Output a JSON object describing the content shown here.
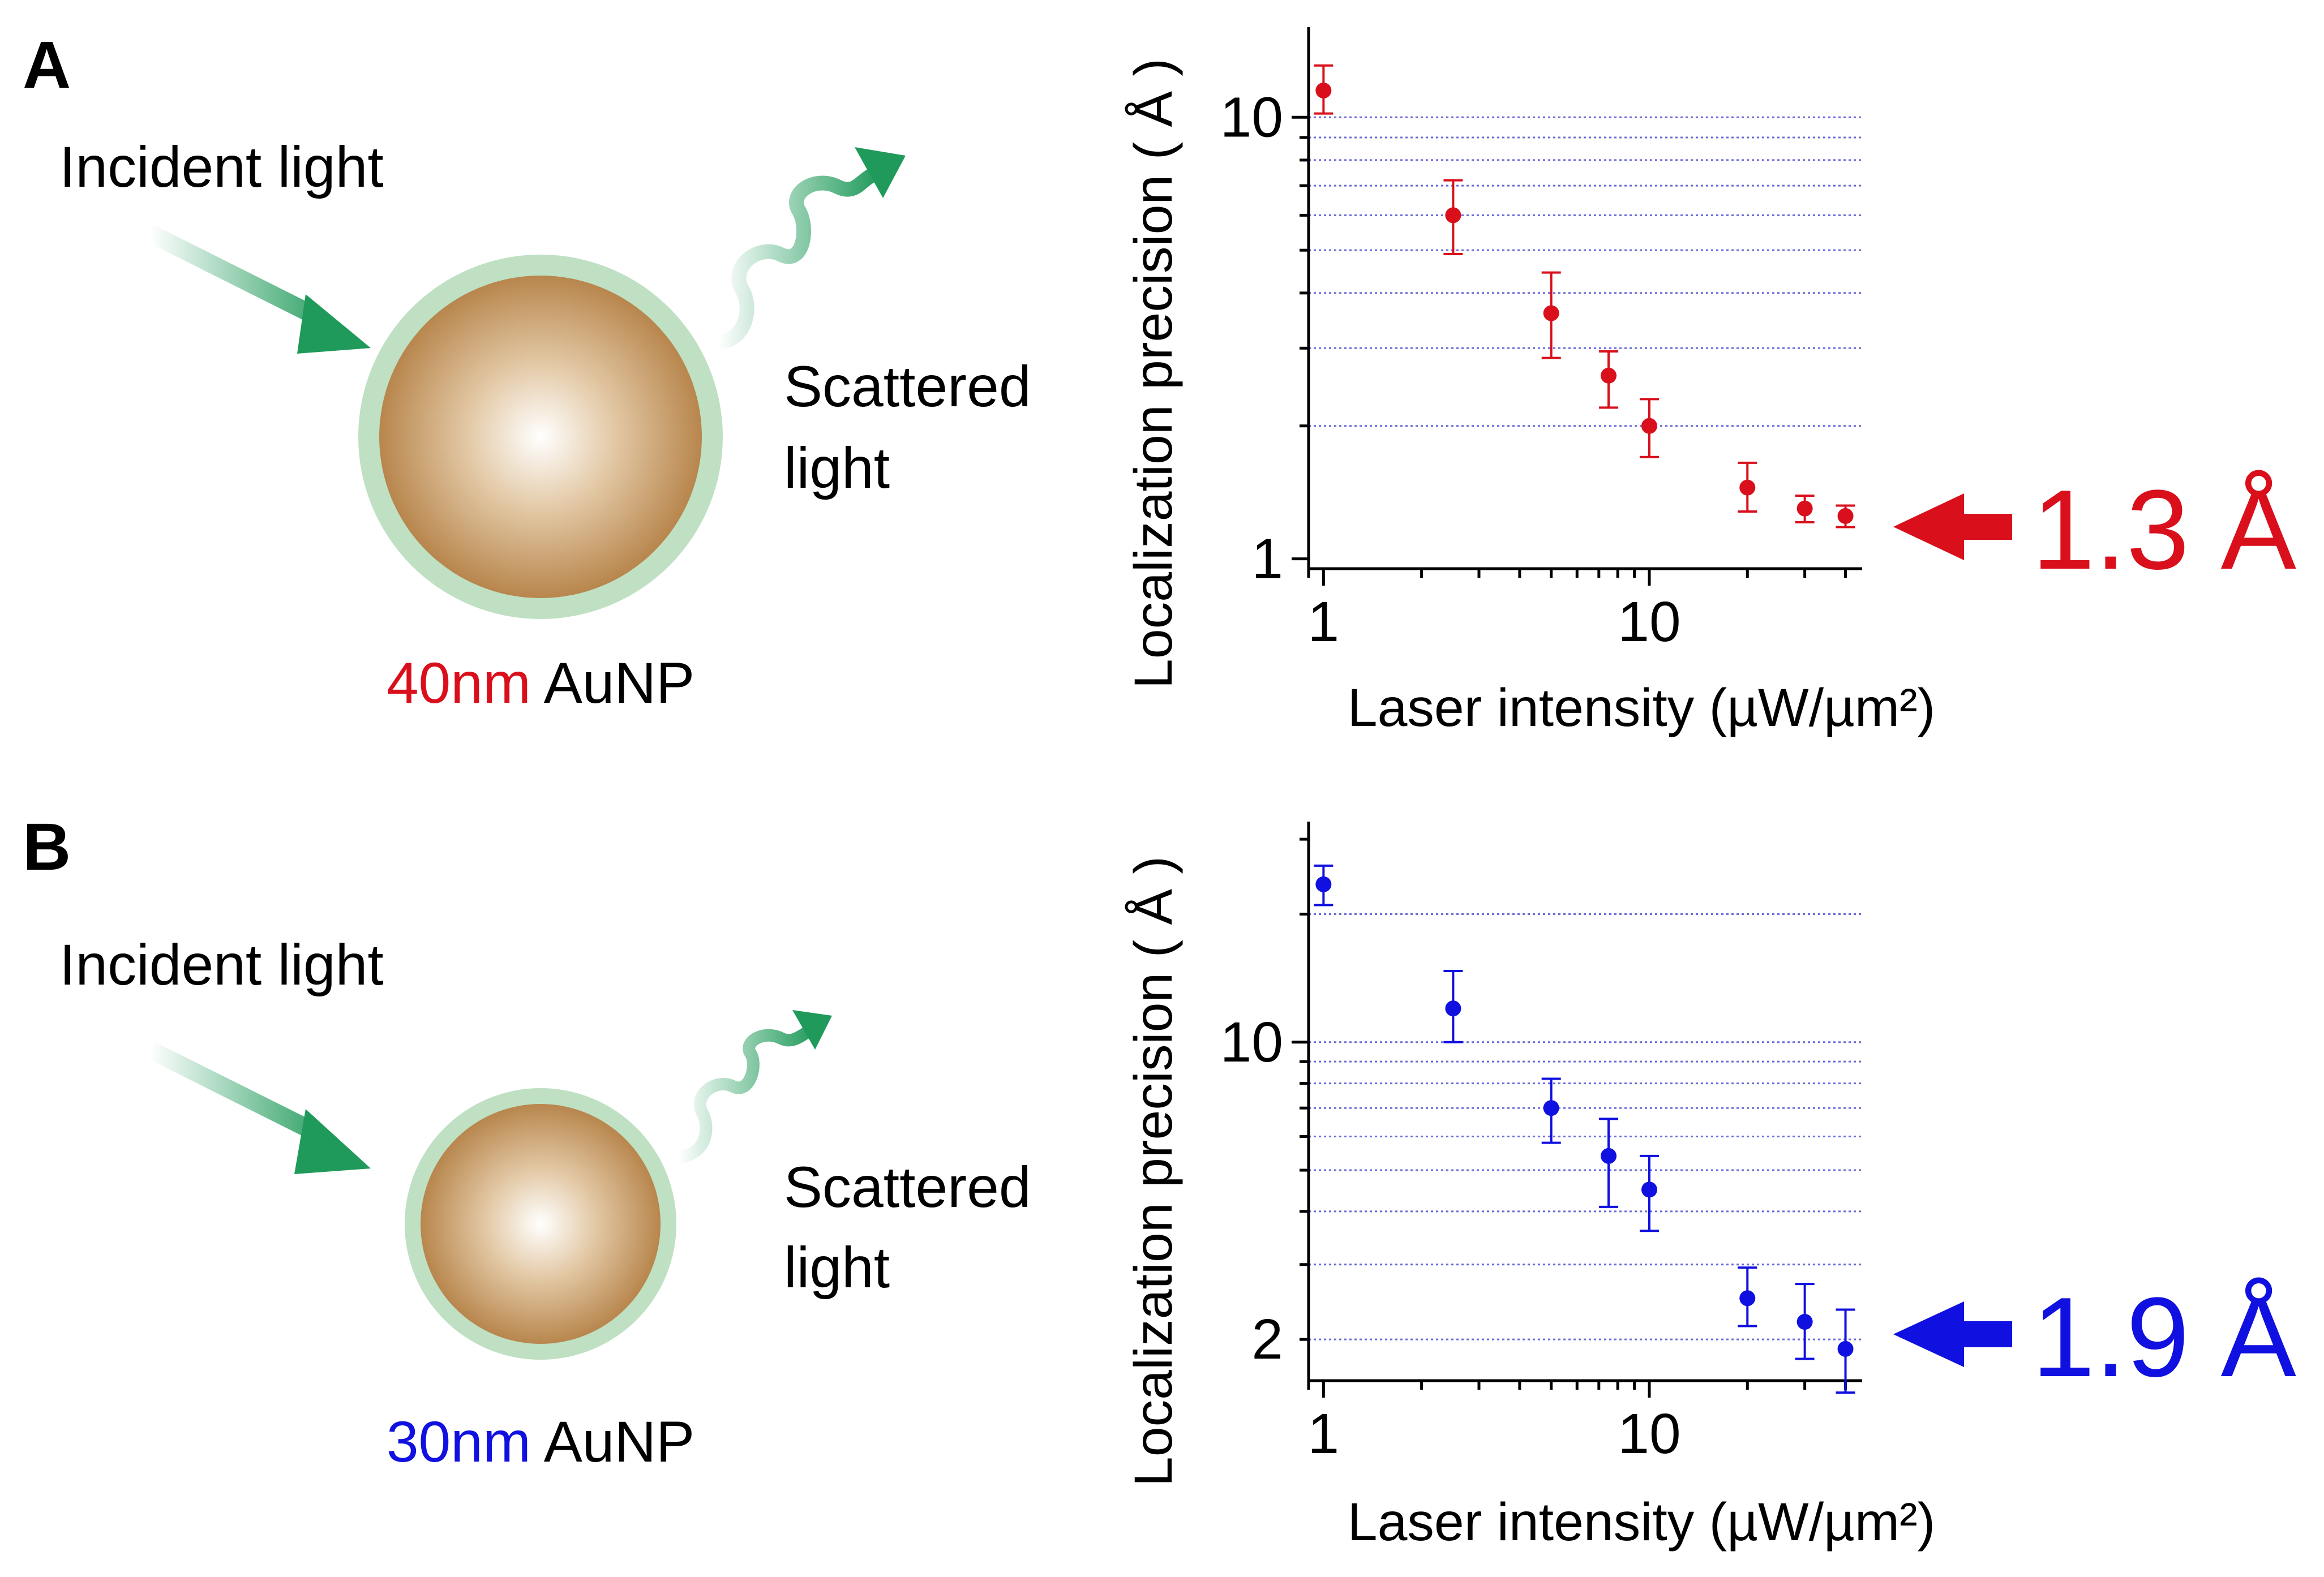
{
  "colors": {
    "red": "#d9101c",
    "blue": "#1010e0",
    "shell": "#bfe0c2",
    "gold_light": "#ffffff",
    "gold_dark": "#b8864d",
    "arrow_green": "#1f9a5a",
    "grid": "#6a6adc"
  },
  "panels": [
    {
      "letter": "A",
      "diagram": {
        "incident_label": "Incident light",
        "scattered_label_1": "Scattered",
        "scattered_label_2": "light",
        "size_label": "40nm",
        "particle_label": "AuNP"
      },
      "callout": {
        "value": "1.3 Å",
        "arrow_icon": "left-arrow-icon"
      }
    },
    {
      "letter": "B",
      "diagram": {
        "incident_label": "Incident light",
        "scattered_label_1": "Scattered",
        "scattered_label_2": "light",
        "size_label": "30nm",
        "particle_label": "AuNP"
      },
      "callout": {
        "value": "1.9 Å",
        "arrow_icon": "left-arrow-icon"
      }
    }
  ],
  "chart_data": [
    {
      "type": "scatter",
      "title": "",
      "xlabel": "Laser intensity (µW/µm²)",
      "ylabel": "Localization precision ( Å )",
      "x_scale": "log",
      "y_scale": "log",
      "xlim": [
        0.9,
        45
      ],
      "ylim": [
        0.95,
        16
      ],
      "x_ticks": [
        {
          "value": 1,
          "label": "1"
        },
        {
          "value": 10,
          "label": "10"
        }
      ],
      "y_ticks": [
        {
          "value": 1,
          "label": "1"
        },
        {
          "value": 10,
          "label": "10"
        }
      ],
      "grid": "horizontal dotted",
      "grid_values": [
        2,
        3,
        4,
        5,
        6,
        7,
        8,
        9,
        10
      ],
      "series": [
        {
          "color": "#d9101c",
          "x": [
            1,
            2.5,
            5,
            7.5,
            10,
            20,
            30,
            40
          ],
          "y": [
            11.5,
            6.0,
            3.6,
            2.6,
            2.0,
            1.45,
            1.3,
            1.25
          ],
          "err_low": [
            1.3,
            1.1,
            0.75,
            0.4,
            0.3,
            0.17,
            0.09,
            0.07
          ],
          "err_high": [
            1.6,
            1.2,
            0.85,
            0.35,
            0.3,
            0.2,
            0.09,
            0.07
          ]
        }
      ]
    },
    {
      "type": "scatter",
      "title": "",
      "xlabel": "Laser intensity (µW/µm²)",
      "ylabel": "Localization precision ( Å )",
      "x_scale": "log",
      "y_scale": "log",
      "xlim": [
        0.9,
        45
      ],
      "ylim": [
        1.6,
        33
      ],
      "x_ticks": [
        {
          "value": 1,
          "label": "1"
        },
        {
          "value": 10,
          "label": "10"
        }
      ],
      "y_ticks": [
        {
          "value": 2,
          "label": "2"
        },
        {
          "value": 10,
          "label": "10"
        }
      ],
      "grid": "horizontal dotted",
      "grid_values": [
        2,
        3,
        4,
        5,
        6,
        7,
        8,
        9,
        10,
        20
      ],
      "series": [
        {
          "color": "#1010e0",
          "x": [
            1,
            2.5,
            5,
            7.5,
            10,
            20,
            30,
            40
          ],
          "y": [
            23.5,
            12.0,
            7.0,
            5.4,
            4.5,
            2.5,
            2.2,
            1.9
          ],
          "err_low": [
            2.5,
            2.0,
            1.2,
            1.3,
            0.9,
            0.35,
            0.4,
            0.4
          ],
          "err_high": [
            2.5,
            2.7,
            1.2,
            1.2,
            0.9,
            0.45,
            0.5,
            0.45
          ]
        }
      ]
    }
  ]
}
